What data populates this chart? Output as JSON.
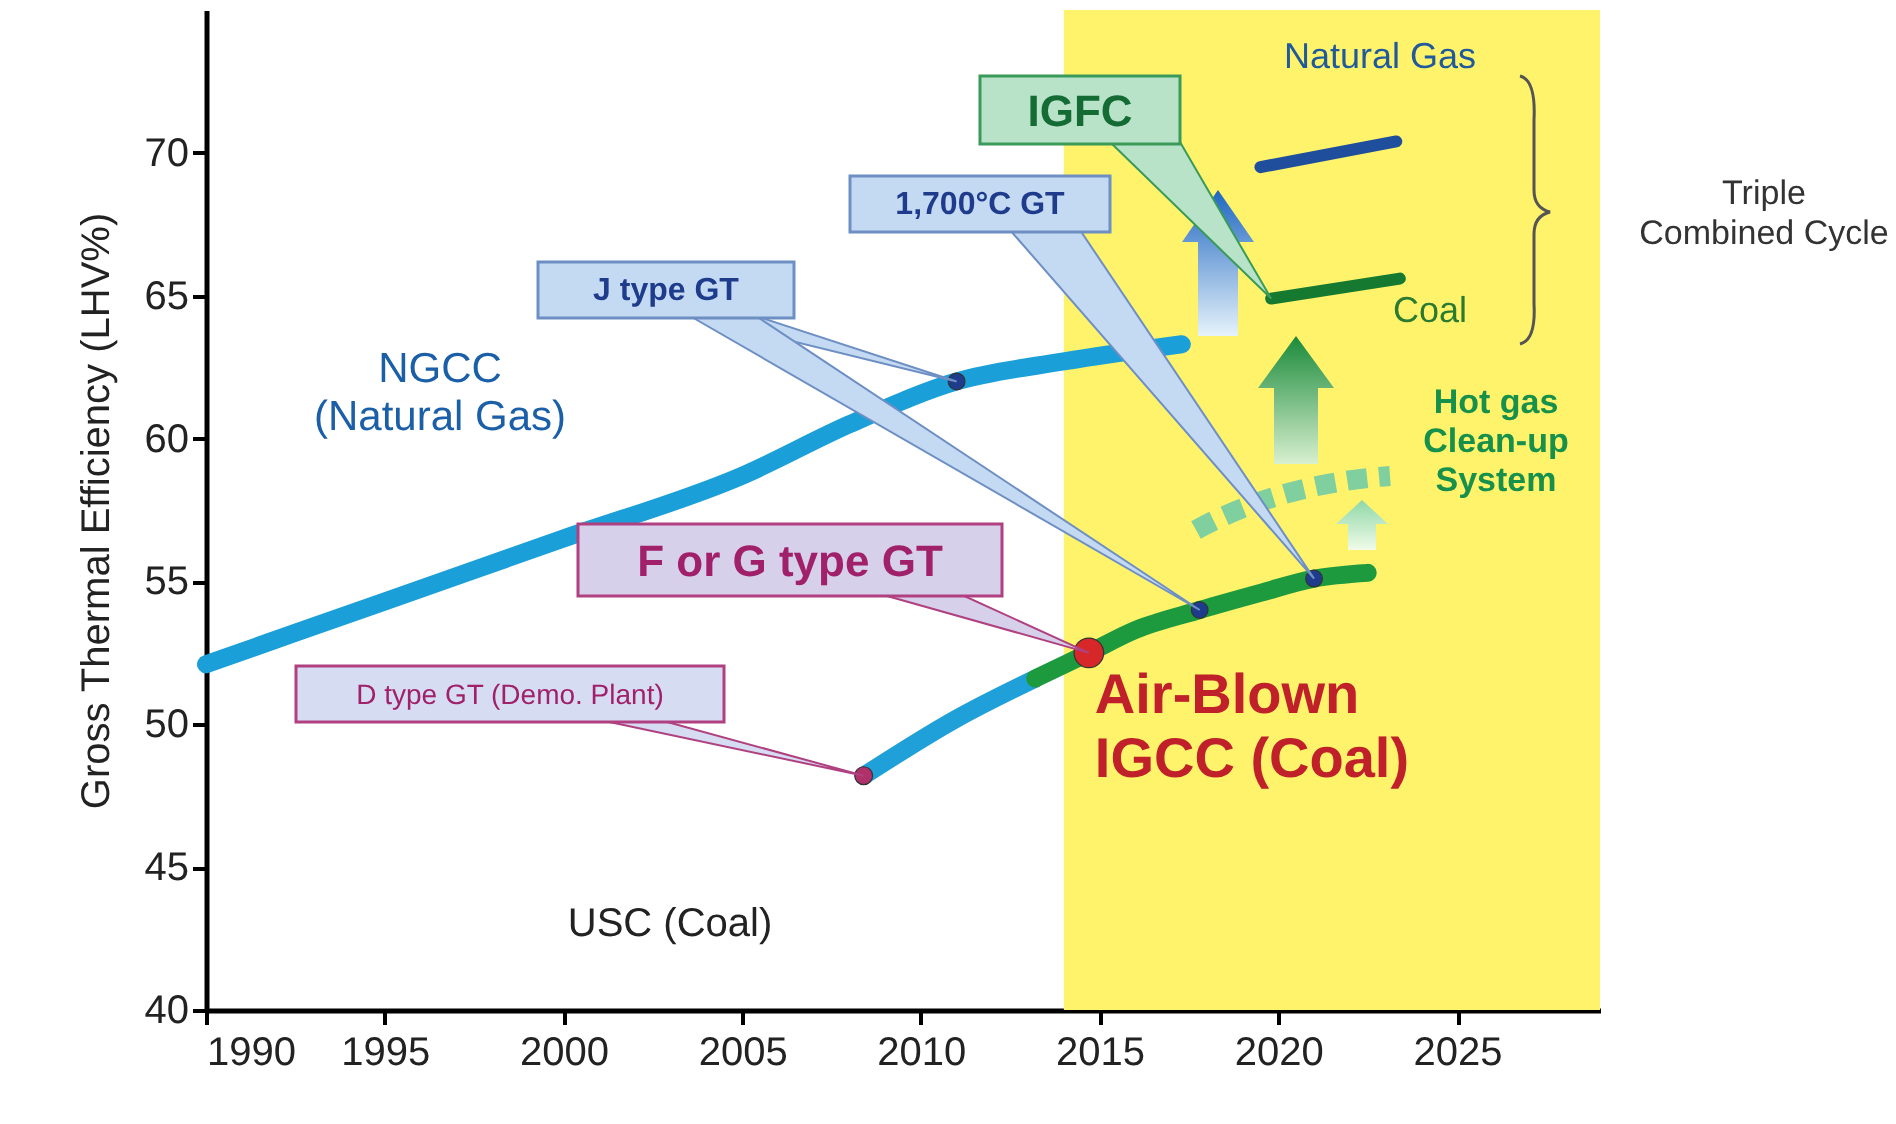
{
  "chart_data": {
    "type": "line",
    "ylabel": "Gross Thermal Efficiency (LHV%)",
    "xlim": [
      1990,
      2029
    ],
    "xticks": [
      1990,
      1995,
      2000,
      2005,
      2010,
      2015,
      2020,
      2025
    ],
    "ylim": [
      40,
      75
    ],
    "yticks": [
      40,
      45,
      50,
      55,
      60,
      65,
      70
    ],
    "grid": false,
    "bands": [
      {
        "axis": "x",
        "from": 2014,
        "to": 2029,
        "color": "#fff36b"
      }
    ],
    "series": [
      {
        "color": "#1a9fd9",
        "x": [
          1990,
          1995,
          2000,
          2005,
          2008,
          2011,
          2014,
          2017.3
        ],
        "values": [
          52.1,
          54.3,
          56.5,
          58.7,
          60.5,
          62.0,
          62.7,
          63.3
        ]
      },
      {
        "color": "#1fa0d8",
        "x": [
          2008.4,
          2011,
          2013.2
        ],
        "values": [
          48.2,
          50.2,
          51.6
        ]
      },
      {
        "color": "#1e9a3e",
        "x": [
          2013.2,
          2014.7,
          2016,
          2017.8,
          2019.5,
          2021,
          2022.5
        ],
        "values": [
          51.6,
          52.5,
          53.3,
          54.0,
          54.6,
          55.1,
          55.3
        ]
      },
      {
        "name": "Natural Gas",
        "color": "#1f4e9c",
        "x": [
          2019.5,
          2023.3
        ],
        "values": [
          69.5,
          70.4
        ]
      },
      {
        "name": "Coal",
        "color": "#157a30",
        "x": [
          2019.8,
          2023.4
        ],
        "values": [
          64.9,
          65.6
        ]
      },
      {
        "type": "scatter",
        "marker": "circle",
        "color": "#1f3c8c",
        "x": [
          2011,
          2017.8,
          2021
        ],
        "values": [
          62.0,
          54.0,
          55.1
        ]
      },
      {
        "type": "scatter",
        "marker": "circle",
        "color": "#b0306a",
        "x": [
          2008.4
        ],
        "values": [
          48.2
        ]
      },
      {
        "type": "scatter",
        "marker": "circle",
        "color": "#d62828",
        "x": [
          2014.7
        ],
        "values": [
          52.5
        ]
      }
    ],
    "annotations": [
      "NGCC (Natural Gas)",
      {
        "text": "J type GT",
        "x": 2011,
        "y": 62.0
      },
      "1,700°C GT",
      "IGFC",
      {
        "text": "F or G type GT",
        "x": 2014.7,
        "y": 52.5
      },
      {
        "text": "D type GT (Demo. Plant)",
        "x": 2008.4,
        "y": 48.2
      },
      {
        "text": "Air-Blown IGCC (Coal)",
        "x": 2014.7,
        "y": 52.5
      },
      "USC (Coal)",
      "Hot gas Clean-up System",
      "Triple Combined Cycle"
    ]
  }
}
